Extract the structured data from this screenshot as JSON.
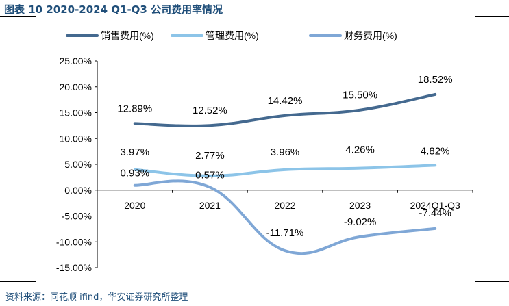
{
  "header": {
    "title": "图表 10 2020-2024 Q1-Q3 公司费用率情况"
  },
  "footer": {
    "source": "资料来源：同花顺 ifind，华安证券研究所整理"
  },
  "colors": {
    "title": "#1f4e79",
    "sales": "#44698f",
    "mgmt": "#8cc4e8",
    "fin": "#7fa7d6"
  },
  "chart_data": {
    "type": "line",
    "title": "",
    "xlabel": "",
    "ylabel": "",
    "categories": [
      "2020",
      "2021",
      "2022",
      "2023",
      "2024Q1-Q3"
    ],
    "ylim": [
      -15,
      25
    ],
    "yticks": [
      25,
      20,
      15,
      10,
      5,
      0,
      -5,
      -10,
      -15
    ],
    "ytick_labels": [
      "25.00%",
      "20.00%",
      "15.00%",
      "10.00%",
      "5.00%",
      "0.00%",
      "-5.00%",
      "-10.00%",
      "-15.00%"
    ],
    "legend_position": "top",
    "series": [
      {
        "name": "销售费用(%)",
        "key": "sales",
        "values": [
          12.89,
          12.52,
          14.42,
          15.5,
          18.52
        ],
        "labels": [
          "12.89%",
          "12.52%",
          "14.42%",
          "15.50%",
          "18.52%"
        ]
      },
      {
        "name": "管理费用(%)",
        "key": "mgmt",
        "values": [
          3.97,
          2.77,
          3.96,
          4.26,
          4.82
        ],
        "labels": [
          "3.97%",
          "2.77%",
          "3.96%",
          "4.26%",
          "4.82%"
        ]
      },
      {
        "name": "财务费用(%)",
        "key": "fin",
        "values": [
          0.93,
          0.57,
          -11.71,
          -9.02,
          -7.44
        ],
        "labels": [
          "0.93%",
          "0.57%",
          "-11.71%",
          "-9.02%",
          "-7.44%"
        ]
      }
    ]
  }
}
